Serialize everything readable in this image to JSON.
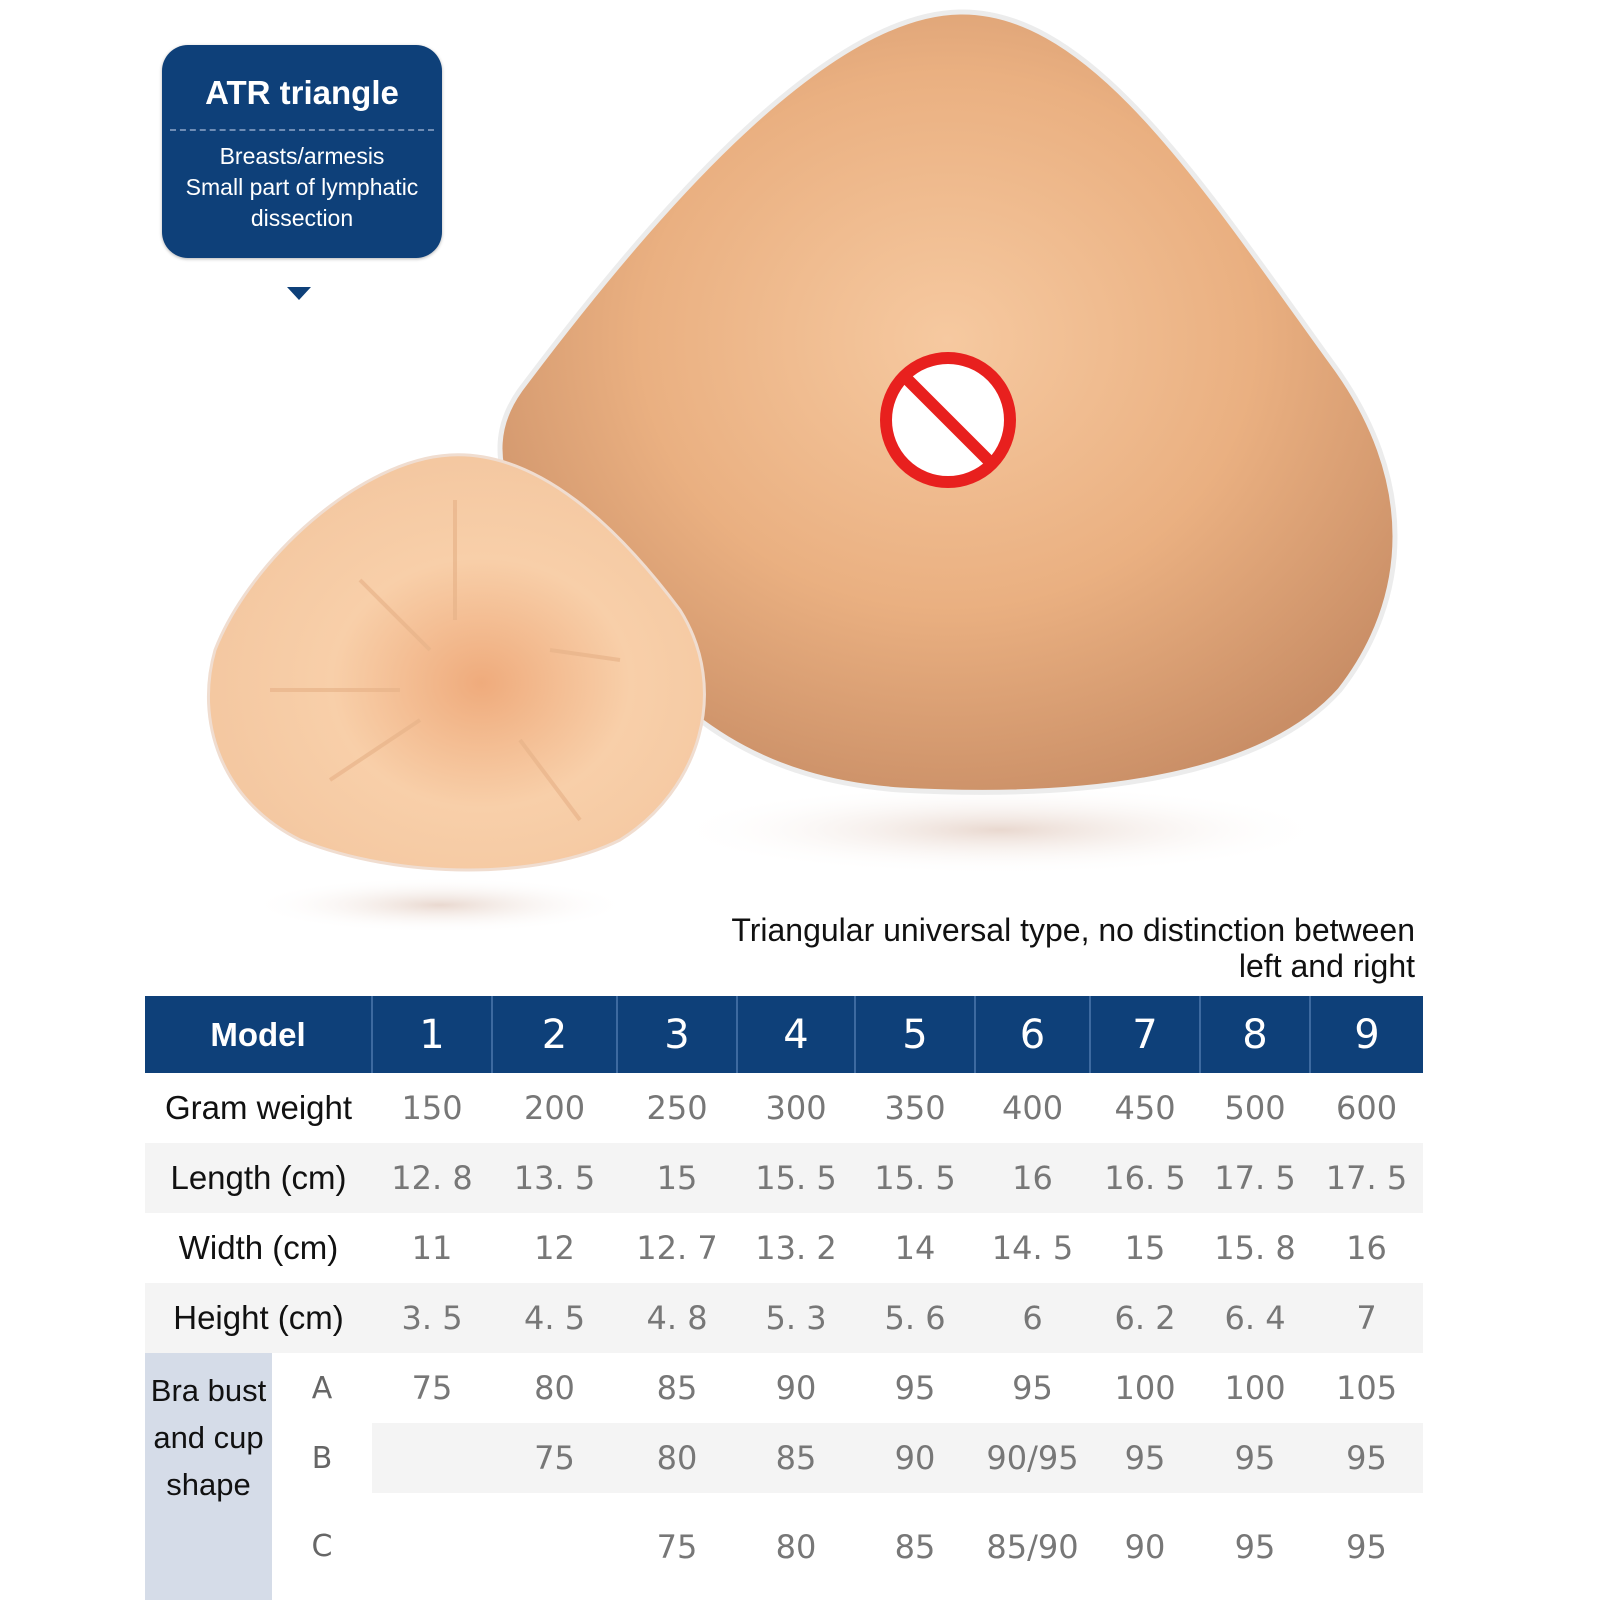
{
  "callout": {
    "title": "ATR triangle",
    "lines": [
      "Breasts/armesis",
      "Small part of lymphatic",
      "dissection"
    ]
  },
  "icons": {
    "censor": "prohibition-sign-icon",
    "pointer": "triangle-down-icon"
  },
  "colors": {
    "brand_blue": "#0e4079",
    "censor_red": "#e8201e",
    "skin": "#e9a877"
  },
  "note": [
    "Triangular universal type, no distinction between",
    "left and right"
  ],
  "table": {
    "header_label": "Model",
    "models": [
      "1",
      "2",
      "3",
      "4",
      "5",
      "6",
      "7",
      "8",
      "9"
    ],
    "rows": [
      {
        "label": "Gram weight",
        "values": [
          "150",
          "200",
          "250",
          "300",
          "350",
          "400",
          "450",
          "500",
          "600"
        ]
      },
      {
        "label": "Length (cm)",
        "values": [
          "12. 8",
          "13. 5",
          "15",
          "15. 5",
          "15. 5",
          "16",
          "16. 5",
          "17. 5",
          "17. 5"
        ]
      },
      {
        "label": "Width (cm)",
        "values": [
          "11",
          "12",
          "12. 7",
          "13. 2",
          "14",
          "14. 5",
          "15",
          "15. 8",
          "16"
        ]
      },
      {
        "label": "Height (cm)",
        "values": [
          "3. 5",
          "4. 5",
          "4. 8",
          "5. 3",
          "5. 6",
          "6",
          "6. 2",
          "6. 4",
          "7"
        ]
      }
    ],
    "bra_label": "Bra bust and cup shape",
    "cups": [
      {
        "cup": "A",
        "values": [
          "75",
          "80",
          "85",
          "90",
          "95",
          "95",
          "100",
          "100",
          "105"
        ]
      },
      {
        "cup": "B",
        "values": [
          "",
          "75",
          "80",
          "85",
          "90",
          "90/95",
          "95",
          "95",
          "95"
        ]
      },
      {
        "cup": "C",
        "values": [
          "",
          "",
          "75",
          "80",
          "85",
          "85/90",
          "90",
          "95",
          "95"
        ]
      }
    ]
  }
}
